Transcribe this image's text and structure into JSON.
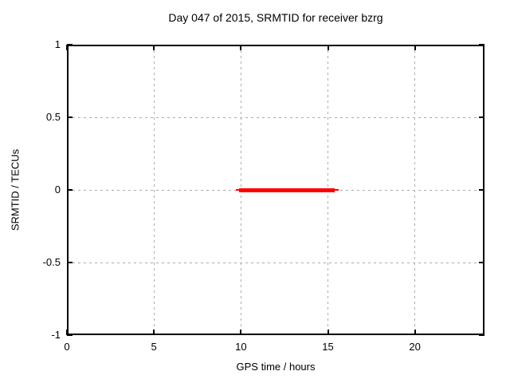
{
  "colors": {
    "line": "#ff0000",
    "grid": "#ababab",
    "axis": "#000000",
    "background": "#ffffff",
    "text": "#000000"
  },
  "chart_data": {
    "type": "line",
    "title": "Day 047 of 2015, SRMTID for receiver bzrg",
    "xlabel": "GPS time / hours",
    "ylabel": "SRMTID / TECUs",
    "xlim": [
      0,
      24
    ],
    "ylim": [
      -1,
      1
    ],
    "xticks": [
      0,
      5,
      10,
      15,
      20
    ],
    "xtick_labels": [
      "0",
      "5",
      "10",
      "15",
      "20"
    ],
    "yticks": [
      1,
      0.5,
      0,
      -0.5,
      -1
    ],
    "ytick_labels": [
      "1",
      "0.5",
      "0",
      "-0.5",
      "-1"
    ],
    "grid": true,
    "legend": "none",
    "series": [
      {
        "name": "SRMTID",
        "color": "#ff0000",
        "description": "SRMTID is approximately 0 TECUs for GPS time ~9.7 to ~15.6 hours; no data outside this interval",
        "points": [
          {
            "x": 9.7,
            "y": 0
          },
          {
            "x": 15.6,
            "y": 0
          }
        ],
        "render_segments": [
          {
            "x_start": 9.7,
            "x_end": 15.6,
            "y": 0,
            "thickness_px": 2
          },
          {
            "x_start": 9.9,
            "x_end": 15.4,
            "y": 0,
            "thickness_px": 5
          }
        ]
      }
    ]
  }
}
